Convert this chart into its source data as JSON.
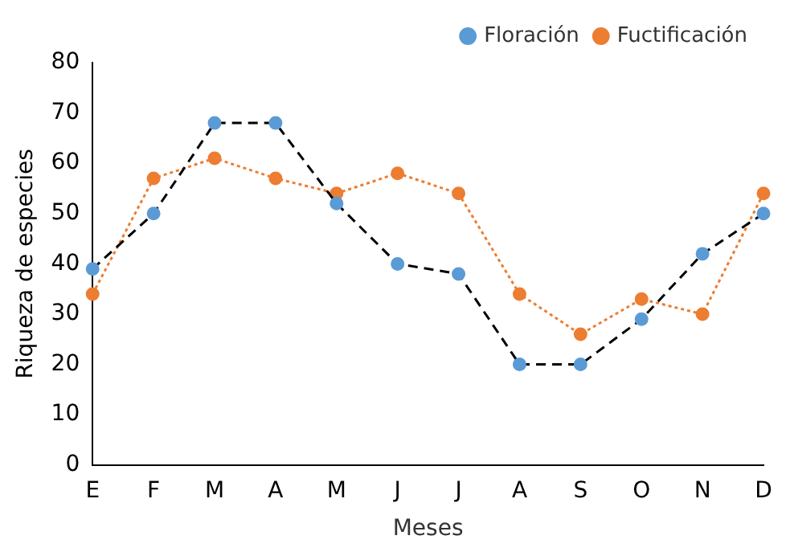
{
  "chart_data": {
    "type": "line",
    "xlabel": "Meses",
    "ylabel": "Riqueza de especies",
    "categories": [
      "E",
      "F",
      "M",
      "A",
      "M",
      "J",
      "J",
      "A",
      "S",
      "O",
      "N",
      "D"
    ],
    "series": [
      {
        "name": "Floración",
        "color": "#000000",
        "colors": [
          "#5b9bd5",
          "#5b9bd5",
          "#5b9bd5",
          "#5b9bd5",
          "#5b9bd5",
          "#5b9bd5",
          "#5b9bd5",
          "#5b9bd5",
          "#5b9bd5",
          "#5b9bd5",
          "#5b9bd5",
          "#5b9bd5"
        ],
        "line_style": "dashed",
        "values": [
          39,
          50,
          68,
          68,
          52,
          40,
          38,
          20,
          20,
          29,
          42,
          50
        ]
      },
      {
        "name": "Fuctificación",
        "color": "#ed7d31",
        "colors": [
          "#ed7d31",
          "#ed7d31",
          "#ed7d31",
          "#ed7d31",
          "#ed7d31",
          "#ed7d31",
          "#ed7d31",
          "#ed7d31",
          "#ed7d31",
          "#ed7d31",
          "#ed7d31",
          "#ed7d31"
        ],
        "line_style": "dotted",
        "values": [
          34,
          57,
          61,
          57,
          54,
          58,
          54,
          34,
          26,
          33,
          30,
          54
        ]
      }
    ],
    "ylim": [
      0,
      80
    ],
    "yticks": [
      0,
      10,
      20,
      30,
      40,
      50,
      60,
      70,
      80
    ],
    "grid": false,
    "legend": "top right",
    "marker": "circle"
  }
}
